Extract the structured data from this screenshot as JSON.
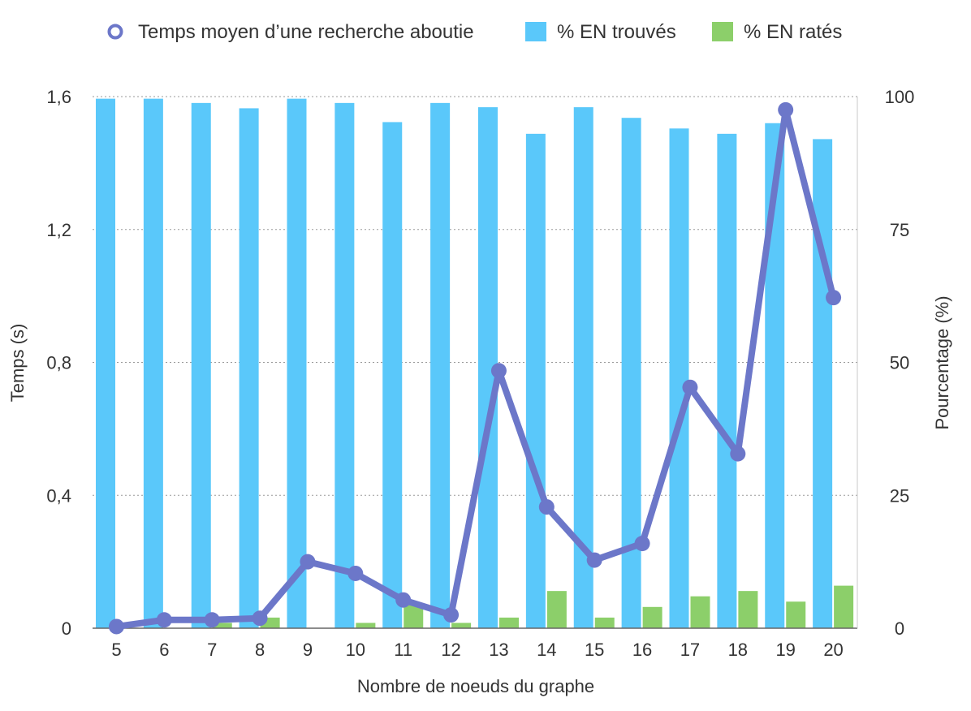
{
  "chart_data": {
    "type": "bar",
    "xlabel": "Nombre de noeuds du graphe",
    "ylabel_left": "Temps (s)",
    "ylabel_right": "Pourcentage (%)",
    "categories": [
      "5",
      "6",
      "7",
      "8",
      "9",
      "10",
      "11",
      "12",
      "13",
      "14",
      "15",
      "16",
      "17",
      "18",
      "19",
      "20"
    ],
    "ylim_left": [
      0,
      1.6
    ],
    "ylim_right": [
      0,
      100
    ],
    "left_ticks": [
      {
        "value": 0,
        "label": "0"
      },
      {
        "value": 0.4,
        "label": "0,4"
      },
      {
        "value": 0.8,
        "label": "0,8"
      },
      {
        "value": 1.2,
        "label": "1,2"
      },
      {
        "value": 1.6,
        "label": "1,6"
      }
    ],
    "right_ticks": [
      {
        "value": 0,
        "label": "0"
      },
      {
        "value": 25,
        "label": "25"
      },
      {
        "value": 50,
        "label": "50"
      },
      {
        "value": 75,
        "label": "75"
      },
      {
        "value": 100,
        "label": "100"
      }
    ],
    "grid": true,
    "legend_position": "top",
    "series": [
      {
        "name": "Temps moyen d’une recherche aboutie",
        "kind": "line",
        "axis": "left",
        "color": "#6c77c9",
        "values": [
          0.005,
          0.025,
          0.025,
          0.03,
          0.2,
          0.165,
          0.085,
          0.04,
          0.775,
          0.365,
          0.205,
          0.255,
          0.725,
          0.525,
          1.56,
          0.995
        ]
      },
      {
        "name": "% EN trouvés",
        "kind": "bar",
        "axis": "right",
        "color": "#5ac8fa",
        "values": [
          99.6,
          99.6,
          98.8,
          97.8,
          99.6,
          98.8,
          95.2,
          98.8,
          98.0,
          93.0,
          98.0,
          96.0,
          94.0,
          93.0,
          95.0,
          92.0
        ]
      },
      {
        "name": "% EN ratés",
        "kind": "bar",
        "axis": "right",
        "color": "#8ccf6a",
        "values": [
          0,
          0,
          1.0,
          2.0,
          0,
          1.0,
          4.5,
          1.0,
          2.0,
          7.0,
          2.0,
          4.0,
          6.0,
          7.0,
          5.0,
          8.0
        ]
      }
    ]
  }
}
